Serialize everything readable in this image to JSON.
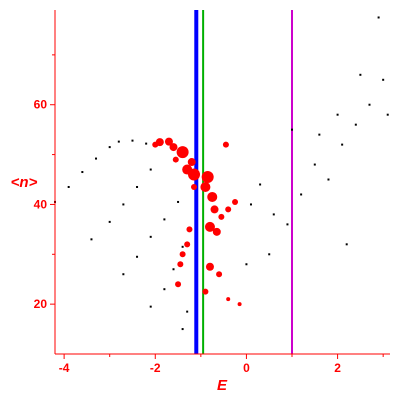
{
  "chart_data": {
    "type": "scatter",
    "xlabel": "E",
    "ylabel": "<n>",
    "xlim": [
      -4.2,
      3.15
    ],
    "ylim": [
      10,
      79
    ],
    "x_ticks": [
      "-4",
      "-2",
      "0",
      "2"
    ],
    "y_ticks": [
      "20",
      "40",
      "60"
    ],
    "grid": false,
    "colors": {
      "axis": "#ff0000",
      "markers_black": "#000000",
      "markers_red": "#ff0000",
      "line_blue": "#0000ff",
      "line_green": "#00b000",
      "line_magenta": "#cc00cc"
    },
    "vertical_lines": [
      {
        "x": -1.1,
        "color": "blue"
      },
      {
        "x": -0.95,
        "color": "green"
      },
      {
        "x": 1.0,
        "color": "magenta"
      }
    ],
    "series": [
      {
        "values": [
          {
            "x": -4.2,
            "y": 40.5
          },
          {
            "x": -3.9,
            "y": 43.5
          },
          {
            "x": -3.6,
            "y": 46.5
          },
          {
            "x": -3.3,
            "y": 49.2
          },
          {
            "x": -3.0,
            "y": 51.5
          },
          {
            "x": -2.8,
            "y": 52.6
          },
          {
            "x": -2.5,
            "y": 52.8
          },
          {
            "x": -2.2,
            "y": 52.2
          },
          {
            "x": -3.4,
            "y": 33.0
          },
          {
            "x": -3.0,
            "y": 36.5
          },
          {
            "x": -2.7,
            "y": 40.0
          },
          {
            "x": -2.4,
            "y": 43.5
          },
          {
            "x": -2.1,
            "y": 47.0
          },
          {
            "x": -2.7,
            "y": 26.0
          },
          {
            "x": -2.4,
            "y": 29.5
          },
          {
            "x": -2.1,
            "y": 33.5
          },
          {
            "x": -1.8,
            "y": 37.0
          },
          {
            "x": -1.5,
            "y": 40.5
          },
          {
            "x": -2.1,
            "y": 19.5
          },
          {
            "x": -1.8,
            "y": 23.0
          },
          {
            "x": -1.6,
            "y": 27.0
          },
          {
            "x": -1.4,
            "y": 31.5
          },
          {
            "x": -1.4,
            "y": 15.0
          },
          {
            "x": -1.3,
            "y": 18.5
          },
          {
            "x": 0.1,
            "y": 40.0
          },
          {
            "x": 0.3,
            "y": 44.0
          },
          {
            "x": 0.6,
            "y": 38.0
          },
          {
            "x": 0.9,
            "y": 36.0
          },
          {
            "x": 1.2,
            "y": 42.0
          },
          {
            "x": 1.5,
            "y": 48.0
          },
          {
            "x": 1.8,
            "y": 45.0
          },
          {
            "x": 2.1,
            "y": 52.0
          },
          {
            "x": 2.4,
            "y": 56.0
          },
          {
            "x": 2.7,
            "y": 60.0
          },
          {
            "x": 3.0,
            "y": 65.0
          },
          {
            "x": 2.9,
            "y": 77.5
          },
          {
            "x": 2.5,
            "y": 66.0
          },
          {
            "x": 2.0,
            "y": 58.0
          },
          {
            "x": 1.6,
            "y": 54.0
          },
          {
            "x": 0.5,
            "y": 30.0
          },
          {
            "x": 0.0,
            "y": 28.0
          },
          {
            "x": 2.2,
            "y": 32.0
          },
          {
            "x": 3.1,
            "y": 58.0
          },
          {
            "x": 1.0,
            "y": 55.0
          }
        ]
      },
      {
        "values": [
          {
            "x": -1.9,
            "y": 52.5
          },
          {
            "x": -1.6,
            "y": 51.5
          },
          {
            "x": -1.4,
            "y": 50.5
          },
          {
            "x": -1.2,
            "y": 48.5
          },
          {
            "x": -1.3,
            "y": 47.0
          },
          {
            "x": -1.15,
            "y": 46.0
          },
          {
            "x": -0.85,
            "y": 45.5
          },
          {
            "x": -0.9,
            "y": 43.5
          },
          {
            "x": -0.75,
            "y": 41.5
          },
          {
            "x": -0.7,
            "y": 39.0
          },
          {
            "x": -0.55,
            "y": 37.5
          },
          {
            "x": -0.4,
            "y": 39.0
          },
          {
            "x": -0.25,
            "y": 40.5
          },
          {
            "x": -0.8,
            "y": 35.5
          },
          {
            "x": -0.65,
            "y": 34.5
          },
          {
            "x": -1.25,
            "y": 35.0
          },
          {
            "x": -1.3,
            "y": 32.0
          },
          {
            "x": -1.4,
            "y": 30.0
          },
          {
            "x": -0.8,
            "y": 27.5
          },
          {
            "x": -0.6,
            "y": 26.0
          },
          {
            "x": -1.45,
            "y": 28.0
          },
          {
            "x": -1.5,
            "y": 24.0
          },
          {
            "x": -0.9,
            "y": 22.5
          },
          {
            "x": -0.4,
            "y": 21.0
          },
          {
            "x": -0.15,
            "y": 20.0
          },
          {
            "x": -0.45,
            "y": 52.0
          },
          {
            "x": -1.7,
            "y": 52.6
          },
          {
            "x": -2.0,
            "y": 52.0
          },
          {
            "x": -1.55,
            "y": 49.0
          },
          {
            "x": -1.15,
            "y": 43.5
          }
        ],
        "sizes": [
          4,
          4,
          6,
          4,
          5,
          6,
          6,
          5,
          5,
          4,
          3,
          3,
          3,
          5,
          4,
          3,
          3,
          3,
          4,
          3,
          3,
          3,
          3,
          2,
          2,
          3,
          4,
          3,
          3,
          3
        ]
      }
    ]
  }
}
